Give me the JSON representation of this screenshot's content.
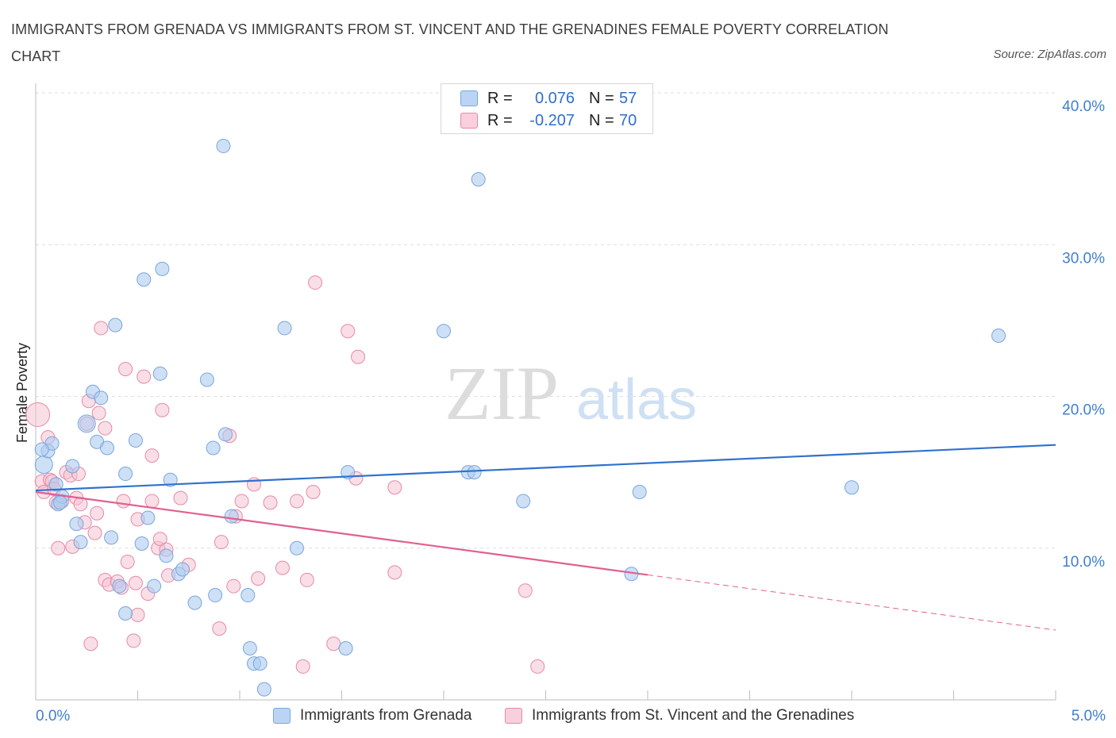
{
  "title": "IMMIGRANTS FROM GRENADA VS IMMIGRANTS FROM ST. VINCENT AND THE GRENADINES FEMALE POVERTY CORRELATION CHART",
  "source": "Source: ZipAtlas.com",
  "watermark": {
    "zip": "ZIP",
    "atlas": "atlas"
  },
  "legend": {
    "rows": [
      {
        "r_label": "R =",
        "r_value": "0.076",
        "n_label": "N =",
        "n_value": "57"
      },
      {
        "r_label": "R =",
        "r_value": "-0.207",
        "n_label": "N =",
        "n_value": "70"
      }
    ]
  },
  "bottom_legend": {
    "series1": "Immigrants from Grenada",
    "series2": "Immigrants from St. Vincent and the Grenadines"
  },
  "colors": {
    "blue_fill": "#aecbf0",
    "blue_stroke": "#7aa6dd",
    "blue_line": "#2f72cc",
    "pink_fill": "#f6c3d2",
    "pink_stroke": "#e58aa8",
    "pink_line": "#e0608e"
  },
  "chart_data": {
    "type": "scatter",
    "title": "IMMIGRANTS FROM GRENADA VS IMMIGRANTS FROM ST. VINCENT AND THE GRENADINES FEMALE POVERTY CORRELATION CHART",
    "xlabel": "",
    "ylabel": "Female Poverty",
    "xlim": [
      0,
      5
    ],
    "ylim": [
      0,
      40
    ],
    "x_tick_labels": [
      "0.0%",
      "5.0%"
    ],
    "y_tick_labels": [
      "10.0%",
      "20.0%",
      "30.0%",
      "40.0%"
    ],
    "y_ticks": [
      10,
      20,
      30,
      40
    ],
    "grid": true,
    "legend_placement": "top-center",
    "series": [
      {
        "name": "Immigrants from Grenada",
        "color": "#aecbf0",
        "trend": {
          "x": [
            0,
            5
          ],
          "y": [
            13.8,
            16.8
          ],
          "dashed_from": null
        },
        "points": [
          [
            0.04,
            15.5
          ],
          [
            0.06,
            16.4
          ],
          [
            0.08,
            16.9
          ],
          [
            0.1,
            14.2
          ],
          [
            0.11,
            12.9
          ],
          [
            0.13,
            13.4
          ],
          [
            0.18,
            15.4
          ],
          [
            0.2,
            11.6
          ],
          [
            0.22,
            10.4
          ],
          [
            0.25,
            18.2
          ],
          [
            0.28,
            20.3
          ],
          [
            0.3,
            17.0
          ],
          [
            0.32,
            19.9
          ],
          [
            0.35,
            16.6
          ],
          [
            0.37,
            10.7
          ],
          [
            0.39,
            24.7
          ],
          [
            0.41,
            7.5
          ],
          [
            0.44,
            5.7
          ],
          [
            0.44,
            14.9
          ],
          [
            0.49,
            17.1
          ],
          [
            0.52,
            10.3
          ],
          [
            0.53,
            27.7
          ],
          [
            0.55,
            12.0
          ],
          [
            0.58,
            7.5
          ],
          [
            0.61,
            21.5
          ],
          [
            0.62,
            28.4
          ],
          [
            0.64,
            9.5
          ],
          [
            0.66,
            14.5
          ],
          [
            0.7,
            8.3
          ],
          [
            0.72,
            8.6
          ],
          [
            0.78,
            6.4
          ],
          [
            0.84,
            21.1
          ],
          [
            0.87,
            16.6
          ],
          [
            0.88,
            6.9
          ],
          [
            0.92,
            36.5
          ],
          [
            0.93,
            17.5
          ],
          [
            0.96,
            12.1
          ],
          [
            1.04,
            6.9
          ],
          [
            1.05,
            3.4
          ],
          [
            1.07,
            2.4
          ],
          [
            1.1,
            2.4
          ],
          [
            1.12,
            0.7
          ],
          [
            1.22,
            24.5
          ],
          [
            1.28,
            10.0
          ],
          [
            1.52,
            3.4
          ],
          [
            1.53,
            15.0
          ],
          [
            2.0,
            24.3
          ],
          [
            2.12,
            15.0
          ],
          [
            2.15,
            15.0
          ],
          [
            2.17,
            34.3
          ],
          [
            2.39,
            13.1
          ],
          [
            2.92,
            8.3
          ],
          [
            2.96,
            13.7
          ],
          [
            4.0,
            14.0
          ],
          [
            4.72,
            24.0
          ],
          [
            0.12,
            13.0
          ],
          [
            0.03,
            16.5
          ]
        ]
      },
      {
        "name": "Immigrants from St. Vincent and the Grenadines",
        "color": "#f6c3d2",
        "trend": {
          "x": [
            0,
            5
          ],
          "y": [
            13.7,
            4.6
          ],
          "dashed_from": 3.0
        },
        "points": [
          [
            0.01,
            18.8
          ],
          [
            0.03,
            14.4
          ],
          [
            0.04,
            13.7
          ],
          [
            0.06,
            17.3
          ],
          [
            0.07,
            14.5
          ],
          [
            0.08,
            14.4
          ],
          [
            0.09,
            13.9
          ],
          [
            0.1,
            13.0
          ],
          [
            0.11,
            10.0
          ],
          [
            0.13,
            13.1
          ],
          [
            0.15,
            15.0
          ],
          [
            0.17,
            14.8
          ],
          [
            0.18,
            10.1
          ],
          [
            0.2,
            13.3
          ],
          [
            0.21,
            14.9
          ],
          [
            0.22,
            12.9
          ],
          [
            0.24,
            11.7
          ],
          [
            0.25,
            18.2
          ],
          [
            0.26,
            19.7
          ],
          [
            0.27,
            3.7
          ],
          [
            0.29,
            11.0
          ],
          [
            0.3,
            12.3
          ],
          [
            0.31,
            18.9
          ],
          [
            0.32,
            24.5
          ],
          [
            0.34,
            17.9
          ],
          [
            0.34,
            7.9
          ],
          [
            0.36,
            7.6
          ],
          [
            0.4,
            7.8
          ],
          [
            0.42,
            7.4
          ],
          [
            0.43,
            13.1
          ],
          [
            0.44,
            21.8
          ],
          [
            0.45,
            9.1
          ],
          [
            0.48,
            3.9
          ],
          [
            0.49,
            7.7
          ],
          [
            0.5,
            5.6
          ],
          [
            0.5,
            11.9
          ],
          [
            0.53,
            21.3
          ],
          [
            0.55,
            7.0
          ],
          [
            0.57,
            16.1
          ],
          [
            0.57,
            13.1
          ],
          [
            0.6,
            10.0
          ],
          [
            0.61,
            10.6
          ],
          [
            0.62,
            19.1
          ],
          [
            0.64,
            9.9
          ],
          [
            0.65,
            8.2
          ],
          [
            0.71,
            13.3
          ],
          [
            0.75,
            8.9
          ],
          [
            0.9,
            4.7
          ],
          [
            0.91,
            10.4
          ],
          [
            0.95,
            17.4
          ],
          [
            0.97,
            7.5
          ],
          [
            0.98,
            12.1
          ],
          [
            1.01,
            13.1
          ],
          [
            1.07,
            14.2
          ],
          [
            1.09,
            8.0
          ],
          [
            1.15,
            13.0
          ],
          [
            1.21,
            8.7
          ],
          [
            1.28,
            13.1
          ],
          [
            1.31,
            2.2
          ],
          [
            1.33,
            7.9
          ],
          [
            1.36,
            13.7
          ],
          [
            1.37,
            27.5
          ],
          [
            1.46,
            3.7
          ],
          [
            1.53,
            24.3
          ],
          [
            1.57,
            14.6
          ],
          [
            1.58,
            22.6
          ],
          [
            1.76,
            8.4
          ],
          [
            1.76,
            14.0
          ],
          [
            2.4,
            7.2
          ],
          [
            2.46,
            2.2
          ]
        ]
      }
    ]
  }
}
